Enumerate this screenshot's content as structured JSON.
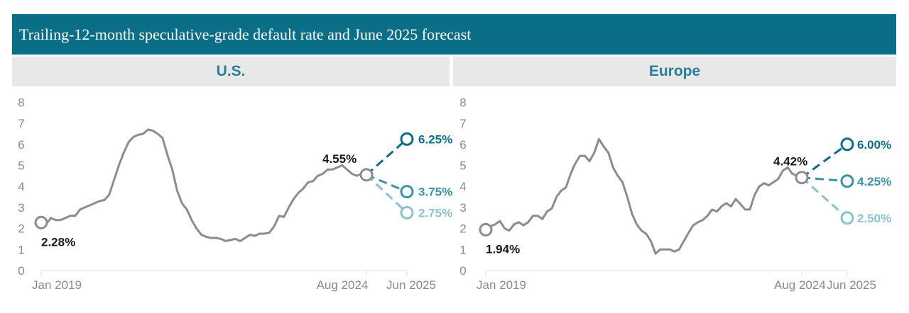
{
  "title": "Trailing-12-month speculative-grade default rate and June 2025 forecast",
  "colors": {
    "history": "#8c8c8c",
    "pessimistic": "#0b6e87",
    "base": "#3a93a8",
    "optimistic": "#86c3cf",
    "header": "#0b6e87"
  },
  "chart_data": [
    {
      "type": "line",
      "title": "U.S.",
      "ylim": [
        0,
        8
      ],
      "yticks": [
        "0",
        "1",
        "2",
        "3",
        "4",
        "5",
        "6",
        "7",
        "8"
      ],
      "xticks": [
        "Jan 2019",
        "Aug 2024",
        "Jun 2025"
      ],
      "x_start": "Jan 2019",
      "x_end": "Aug 2024",
      "values": [
        2.28,
        2.2,
        2.5,
        2.4,
        2.4,
        2.5,
        2.6,
        2.6,
        2.9,
        3.0,
        3.1,
        3.2,
        3.3,
        3.35,
        3.6,
        4.3,
        5.0,
        5.6,
        6.1,
        6.35,
        6.45,
        6.5,
        6.7,
        6.65,
        6.5,
        6.3,
        5.5,
        4.8,
        3.8,
        3.2,
        2.9,
        2.4,
        2.0,
        1.7,
        1.6,
        1.55,
        1.55,
        1.5,
        1.4,
        1.45,
        1.5,
        1.4,
        1.55,
        1.7,
        1.65,
        1.75,
        1.75,
        1.8,
        2.1,
        2.6,
        2.55,
        3.0,
        3.4,
        3.7,
        3.9,
        4.2,
        4.25,
        4.5,
        4.6,
        4.8,
        4.8,
        4.9,
        5.0,
        4.8,
        4.6,
        4.5,
        4.6,
        4.55
      ],
      "start_label": "2.28%",
      "end_label": "4.55%",
      "forecasts": [
        {
          "scenario": "pessimistic",
          "value": 6.25,
          "label": "6.25%"
        },
        {
          "scenario": "base",
          "value": 3.75,
          "label": "3.75%"
        },
        {
          "scenario": "optimistic",
          "value": 2.75,
          "label": "2.75%"
        }
      ]
    },
    {
      "type": "line",
      "title": "Europe",
      "ylim": [
        0,
        8
      ],
      "yticks": [
        "0",
        "1",
        "2",
        "3",
        "4",
        "5",
        "6",
        "7",
        "8"
      ],
      "xticks": [
        "Jan 2019",
        "Aug 2024",
        "Jun 2025"
      ],
      "x_start": "Jan 2019",
      "x_end": "Aug 2024",
      "values": [
        1.94,
        2.1,
        2.2,
        2.35,
        2.0,
        1.9,
        2.2,
        2.3,
        2.15,
        2.3,
        2.6,
        2.6,
        2.45,
        2.8,
        2.95,
        3.5,
        3.8,
        3.95,
        4.6,
        5.1,
        5.45,
        5.45,
        5.2,
        5.6,
        6.25,
        5.9,
        5.6,
        4.9,
        4.5,
        4.2,
        3.5,
        2.7,
        2.2,
        1.9,
        1.75,
        1.4,
        0.8,
        1.0,
        1.0,
        1.0,
        0.9,
        1.0,
        1.4,
        1.8,
        2.15,
        2.3,
        2.4,
        2.6,
        2.9,
        2.8,
        3.05,
        3.2,
        3.05,
        3.4,
        3.15,
        2.9,
        2.9,
        3.6,
        4.0,
        4.15,
        4.05,
        4.2,
        4.35,
        4.75,
        4.9,
        4.6,
        4.5,
        4.42
      ],
      "start_label": "1.94%",
      "end_label": "4.42%",
      "forecasts": [
        {
          "scenario": "pessimistic",
          "value": 6.0,
          "label": "6.00%"
        },
        {
          "scenario": "base",
          "value": 4.25,
          "label": "4.25%"
        },
        {
          "scenario": "optimistic",
          "value": 2.5,
          "label": "2.50%"
        }
      ]
    }
  ]
}
